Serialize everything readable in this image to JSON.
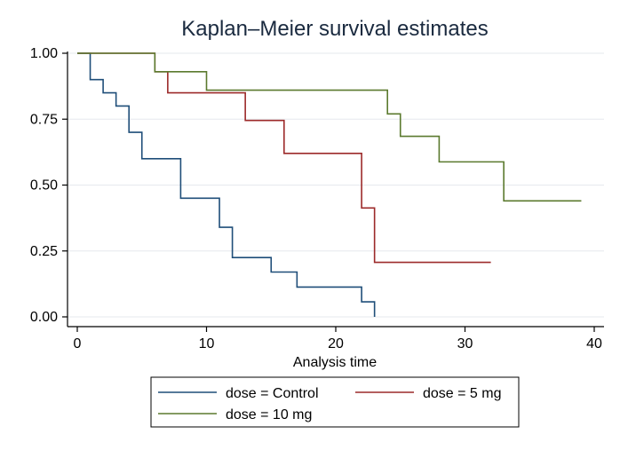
{
  "chart_data": {
    "type": "line",
    "step": true,
    "title": "Kaplan–Meier survival estimates",
    "xlabel": "Analysis time",
    "ylabel": "",
    "xlim": [
      0,
      40
    ],
    "ylim": [
      0,
      1
    ],
    "xticks": [
      "0",
      "10",
      "20",
      "30",
      "40"
    ],
    "yticks": [
      "0.00",
      "0.25",
      "0.50",
      "0.75",
      "1.00"
    ],
    "grid": true,
    "legend_position": "bottom",
    "series": [
      {
        "name": "dose = Control",
        "color": "#1f4e79",
        "x": [
          0,
          1,
          2,
          3,
          4,
          5,
          8,
          11,
          12,
          15,
          17,
          22,
          23
        ],
        "y": [
          1.0,
          0.9,
          0.85,
          0.8,
          0.7,
          0.6,
          0.45,
          0.34,
          0.225,
          0.17,
          0.113,
          0.057,
          0.0
        ],
        "end": 23
      },
      {
        "name": "dose = 5 mg",
        "color": "#9c2a2a",
        "x": [
          0,
          6,
          7,
          13,
          16,
          22,
          23
        ],
        "y": [
          1.0,
          0.93,
          0.85,
          0.745,
          0.62,
          0.413,
          0.207
        ],
        "end": 32
      },
      {
        "name": "dose = 10 mg",
        "color": "#5b7a2e",
        "x": [
          0,
          6,
          10,
          24,
          25,
          28,
          33
        ],
        "y": [
          1.0,
          0.93,
          0.86,
          0.77,
          0.685,
          0.588,
          0.44
        ],
        "end": 39
      }
    ]
  }
}
